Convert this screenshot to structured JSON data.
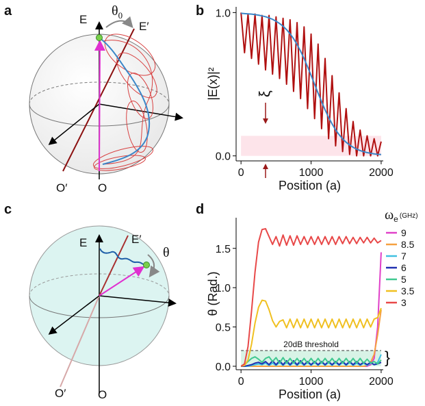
{
  "panel_labels": [
    "a",
    "b",
    "c",
    "d"
  ],
  "diagram_a": {
    "e": "E",
    "e_prime": "E′",
    "o_prime": "O′",
    "o": "O",
    "theta": "θ",
    "theta_subscript": "0"
  },
  "diagram_c": {
    "e": "E",
    "e_prime": "E′",
    "o_prime": "O′",
    "o": "O",
    "theta": "θ"
  },
  "chart_data": [
    {
      "type": "line",
      "xlabel": "Position (a)",
      "ylabel": "|E(x)|²",
      "x": [
        0,
        50,
        100,
        150,
        200,
        250,
        300,
        350,
        400,
        450,
        500,
        550,
        600,
        650,
        700,
        750,
        800,
        850,
        900,
        950,
        1000,
        1050,
        1100,
        1150,
        1200,
        1250,
        1300,
        1350,
        1400,
        1450,
        1500,
        1550,
        1600,
        1650,
        1700,
        1750,
        1800,
        1850,
        1900,
        1950,
        2000
      ],
      "series": [
        {
          "color": "#b01010",
          "values": [
            1.0,
            0.72,
            0.99,
            0.68,
            0.99,
            0.64,
            0.98,
            0.6,
            0.98,
            0.57,
            0.97,
            0.54,
            0.96,
            0.5,
            0.95,
            0.45,
            0.93,
            0.4,
            0.9,
            0.33,
            0.85,
            0.26,
            0.78,
            0.19,
            0.68,
            0.12,
            0.56,
            0.07,
            0.44,
            0.03,
            0.33,
            0.01,
            0.24,
            0.0,
            0.18,
            0.0,
            0.14,
            0.0,
            0.12,
            0.0,
            0.1
          ]
        },
        {
          "color": "#3a86c8",
          "values": [
            0.995,
            0.993,
            0.991,
            0.989,
            0.986,
            0.982,
            0.977,
            0.971,
            0.963,
            0.953,
            0.94,
            0.924,
            0.905,
            0.881,
            0.852,
            0.818,
            0.777,
            0.731,
            0.679,
            0.622,
            0.562,
            0.5,
            0.438,
            0.378,
            0.321,
            0.269,
            0.223,
            0.182,
            0.148,
            0.119,
            0.095,
            0.076,
            0.06,
            0.047,
            0.037,
            0.029,
            0.023,
            0.018,
            0.014,
            0.011,
            0.009
          ]
        }
      ],
      "shaded_region": [
        0,
        0.14
      ],
      "shaded_color": "#fde4ea",
      "annotation": {
        "text": "ξ",
        "x": 350,
        "color": "#9a1a1a"
      },
      "xlim": [
        -70,
        2030
      ],
      "ylim": [
        -0.035,
        1.04
      ],
      "xticks": [
        0,
        1000,
        2000
      ],
      "yticks": [
        {
          "value": 0,
          "label": "0.0"
        },
        {
          "value": 1,
          "label": "1.0"
        }
      ]
    },
    {
      "type": "line",
      "xlabel": "Position (a)",
      "ylabel": "θ (Rad.)",
      "legend_title": {
        "symbol": "ω",
        "subscript": "e",
        "unit": "(GHz)"
      },
      "x": [
        0,
        50,
        100,
        150,
        200,
        250,
        300,
        350,
        400,
        450,
        500,
        550,
        600,
        650,
        700,
        750,
        800,
        850,
        900,
        950,
        1000,
        1050,
        1100,
        1150,
        1200,
        1250,
        1300,
        1350,
        1400,
        1450,
        1500,
        1550,
        1600,
        1650,
        1700,
        1750,
        1800,
        1850,
        1900,
        1950,
        2000
      ],
      "series": [
        {
          "name": "9",
          "color": "#e040c8",
          "values": [
            0,
            0,
            0,
            0,
            0,
            0,
            0,
            0,
            0,
            0,
            0,
            0,
            0,
            0,
            0,
            0,
            0,
            0,
            0,
            0,
            0,
            0,
            0,
            0,
            0,
            0,
            0,
            0,
            0,
            0,
            0,
            0,
            0,
            0,
            0,
            0,
            0,
            0.02,
            0.1,
            0.5,
            1.45
          ]
        },
        {
          "name": "8.5",
          "color": "#f5a040",
          "values": [
            0,
            0,
            0,
            0,
            0,
            0,
            0,
            0,
            0,
            0,
            0,
            0,
            0,
            0,
            0,
            0,
            0,
            0,
            0,
            0,
            0,
            0,
            0,
            0,
            0,
            0,
            0,
            0,
            0,
            0,
            0,
            0,
            0,
            0,
            0,
            0,
            0.01,
            0.05,
            0.15,
            0.4,
            0.72
          ]
        },
        {
          "name": "7",
          "color": "#40c0e0",
          "values": [
            0,
            0,
            0,
            0.01,
            0.02,
            0.03,
            0.02,
            0.04,
            0.01,
            0.04,
            0.01,
            0.05,
            0.01,
            0.05,
            0.01,
            0.05,
            0.01,
            0.05,
            0.01,
            0.05,
            0.01,
            0.05,
            0.01,
            0.05,
            0.01,
            0.05,
            0.01,
            0.05,
            0.01,
            0.05,
            0.01,
            0.05,
            0.01,
            0.04,
            0.01,
            0.04,
            0.01,
            0.04,
            0.02,
            0.05,
            0.15
          ]
        },
        {
          "name": "6",
          "color": "#2030b0",
          "values": [
            0,
            0,
            0.01,
            0.02,
            0.04,
            0.05,
            0.03,
            0.06,
            0.02,
            0.07,
            0.02,
            0.07,
            0.02,
            0.07,
            0.02,
            0.07,
            0.02,
            0.07,
            0.02,
            0.06,
            0.02,
            0.06,
            0.02,
            0.06,
            0.02,
            0.06,
            0.02,
            0.06,
            0.02,
            0.06,
            0.02,
            0.06,
            0.02,
            0.06,
            0.02,
            0.05,
            0.02,
            0.05,
            0.02,
            0.03,
            0.05
          ]
        },
        {
          "name": "5",
          "color": "#40c890",
          "values": [
            0,
            0.02,
            0.06,
            0.1,
            0.12,
            0.09,
            0.05,
            0.1,
            0.12,
            0.06,
            0.11,
            0.04,
            0.11,
            0.04,
            0.1,
            0.04,
            0.1,
            0.04,
            0.1,
            0.04,
            0.1,
            0.04,
            0.1,
            0.04,
            0.1,
            0.04,
            0.1,
            0.04,
            0.1,
            0.04,
            0.1,
            0.04,
            0.1,
            0.04,
            0.1,
            0.04,
            0.09,
            0.04,
            0.06,
            0.03,
            0.08
          ]
        },
        {
          "name": "3.5",
          "color": "#f0c020",
          "values": [
            0,
            0.01,
            0.08,
            0.28,
            0.55,
            0.75,
            0.84,
            0.83,
            0.72,
            0.58,
            0.5,
            0.57,
            0.59,
            0.49,
            0.6,
            0.49,
            0.6,
            0.49,
            0.6,
            0.49,
            0.6,
            0.49,
            0.6,
            0.49,
            0.6,
            0.49,
            0.6,
            0.49,
            0.6,
            0.49,
            0.6,
            0.49,
            0.6,
            0.49,
            0.6,
            0.49,
            0.6,
            0.5,
            0.6,
            0.62,
            0.74
          ]
        },
        {
          "name": "3",
          "color": "#e84848",
          "values": [
            0,
            0.03,
            0.25,
            0.7,
            1.2,
            1.58,
            1.74,
            1.75,
            1.65,
            1.55,
            1.65,
            1.53,
            1.67,
            1.54,
            1.66,
            1.54,
            1.66,
            1.55,
            1.65,
            1.55,
            1.65,
            1.55,
            1.65,
            1.55,
            1.65,
            1.55,
            1.65,
            1.55,
            1.65,
            1.56,
            1.65,
            1.56,
            1.64,
            1.56,
            1.64,
            1.57,
            1.64,
            1.57,
            1.63,
            1.57,
            1.6
          ]
        }
      ],
      "shaded_region": [
        0,
        0.2
      ],
      "shaded_color": "#d8f3e6",
      "threshold": {
        "value": 0.2,
        "label": "20dB threshold"
      },
      "xlim": [
        -70,
        2030
      ],
      "ylim": [
        -0.044,
        1.89
      ],
      "xticks": [
        0,
        1000,
        2000
      ],
      "yticks": [
        {
          "value": 0,
          "label": "0.0"
        },
        0.5,
        {
          "value": 1,
          "label": "1.0"
        },
        1.5
      ]
    }
  ]
}
